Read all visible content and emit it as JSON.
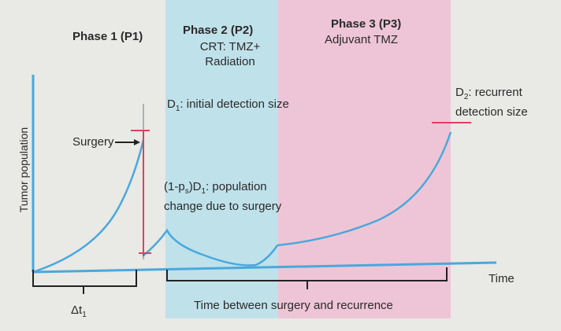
{
  "phases": [
    {
      "title": "Phase 1 (P1)",
      "subtitle": ""
    },
    {
      "title": "Phase 2 (P2)",
      "subtitle": "CRT: TMZ+\nRadiation"
    },
    {
      "title": "Phase 3 (P3)",
      "subtitle": "Adjuvant TMZ"
    }
  ],
  "axes": {
    "ylabel": "Tumor population",
    "xlabel": "Time"
  },
  "annotations": {
    "surgery": "Surgery",
    "d1_sym": "D",
    "d1_sub": "1",
    "d1_rest": ": initial detection size",
    "d2_sym": "D",
    "d2_sub": "2",
    "d2_rest_line1": ": recurrent",
    "d2_rest_line2": "detection size",
    "change_pre": "(1-p",
    "change_sub1": "s",
    "change_mid": ")D",
    "change_sub2": "1",
    "change_rest": ": population",
    "change_line2": "change due to surgery",
    "dt_sym": "Δt",
    "dt_sub": "1",
    "between": "Time between surgery and recurrence"
  },
  "colors": {
    "phase2_band": "#bfe1ea",
    "phase3_band": "#eec5d6",
    "curve": "#4aa8dc",
    "marker": "#e0405f",
    "bracket": "#222222",
    "background": "#e9e9e6"
  }
}
